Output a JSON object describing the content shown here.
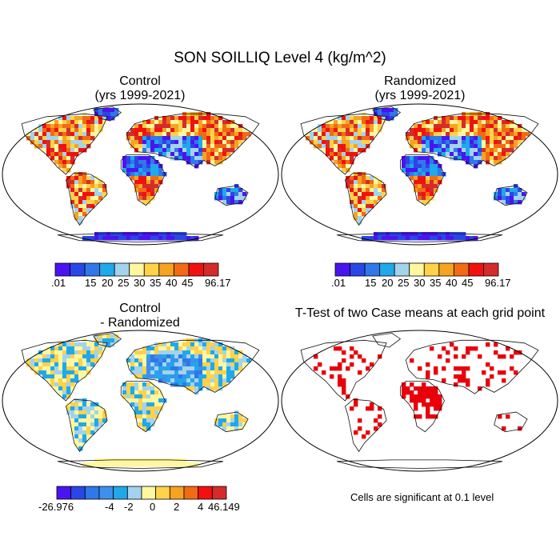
{
  "main_title": "SON SOILLIQ Level 4 (kg/m^2)",
  "panels": {
    "control": {
      "title_line1": "Control",
      "title_line2": "(yrs 1999-2021)"
    },
    "randomized": {
      "title_line1": "Randomized",
      "title_line2": "(yrs 1999-2021)"
    },
    "difference": {
      "title_line1": "Control",
      "title_line2": "- Randomized"
    },
    "ttest": {
      "title": "T-Test of two Case means at each grid point",
      "note": "Cells are significant at 0.1 level"
    }
  },
  "colorbars": {
    "abs": {
      "colors": [
        "#4a14f0",
        "#2a46e6",
        "#2f78ea",
        "#20a8ea",
        "#a3d3ec",
        "#fff7a0",
        "#ffd24a",
        "#f5a321",
        "#f26a13",
        "#f2110e",
        "#d42b2b"
      ],
      "labels": [
        ".01",
        "15",
        "20",
        "25",
        "30",
        "35",
        "40",
        "45",
        "96.17"
      ]
    },
    "diff": {
      "colors": [
        "#4a14f0",
        "#2a46e6",
        "#2f78ea",
        "#3d91ec",
        "#20a8ea",
        "#a3d3ec",
        "#fff7a0",
        "#ffd24a",
        "#f5a321",
        "#f26a13",
        "#f2110e",
        "#d42b2b"
      ],
      "labels": [
        "-26.976",
        "-4",
        "-2",
        "0",
        "2",
        "4",
        "46.149"
      ]
    }
  },
  "significance_color": "#e8000b"
}
